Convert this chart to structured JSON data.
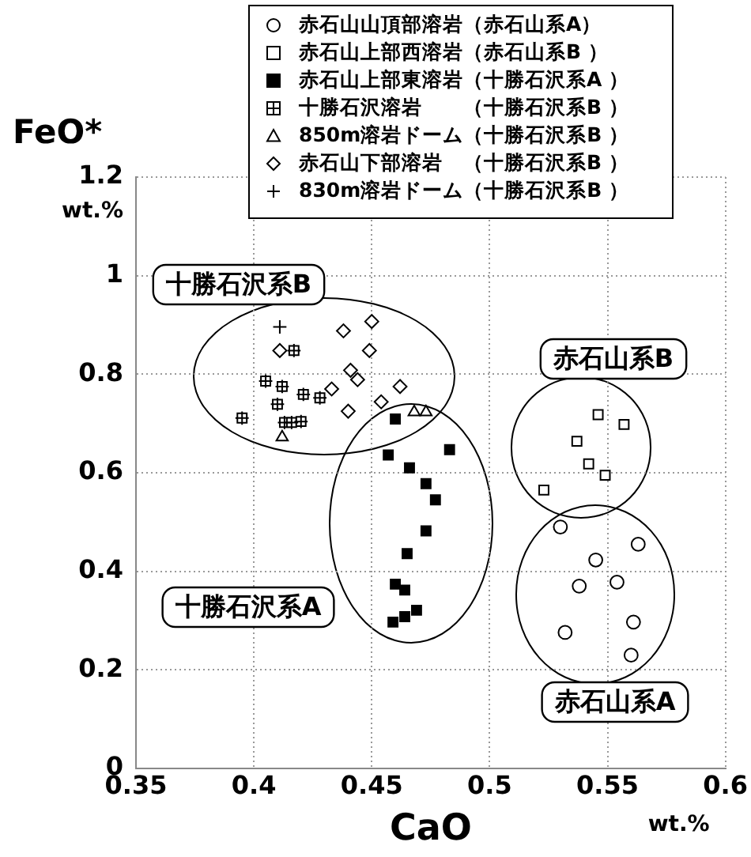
{
  "chart_data": {
    "type": "scatter",
    "xlabel": "CaO",
    "ylabel": "FeO*",
    "xlim": [
      0.35,
      0.6
    ],
    "xticks": [
      0.35,
      0.4,
      0.45,
      0.5,
      0.55,
      0.6
    ],
    "ylim": [
      0,
      1.2
    ],
    "yticks": [
      0,
      0.2,
      0.4,
      0.6,
      0.8,
      1,
      1.2
    ],
    "grid": true,
    "legend": "top",
    "annotations": [
      "wt.%",
      "wt.%",
      "十勝石沢系B",
      "赤石山系B",
      "十勝石沢系A",
      "赤石山系A"
    ],
    "series": [
      {
        "name": "赤石山山頂部溶岩（赤石山系A）",
        "color": "#000000",
        "marker": "circle",
        "x": [
          0.53,
          0.563,
          0.545,
          0.538,
          0.554,
          0.561,
          0.532,
          0.56
        ],
        "values": [
          0.49,
          0.455,
          0.423,
          0.37,
          0.378,
          0.297,
          0.276,
          0.23
        ]
      },
      {
        "name": "赤石山上部西溶岩（赤石山系B ）",
        "color": "#000000",
        "marker": "square",
        "x": [
          0.546,
          0.557,
          0.537,
          0.542,
          0.549,
          0.523
        ],
        "values": [
          0.718,
          0.698,
          0.664,
          0.618,
          0.595,
          0.565
        ]
      },
      {
        "name": "赤石山上部東溶岩（十勝石沢系A ）",
        "color": "#000000",
        "marker": "square",
        "x": [
          0.46,
          0.483,
          0.457,
          0.466,
          0.473,
          0.477,
          0.473,
          0.465,
          0.46,
          0.464,
          0.469,
          0.464,
          0.459
        ],
        "values": [
          0.709,
          0.647,
          0.636,
          0.61,
          0.578,
          0.545,
          0.482,
          0.436,
          0.374,
          0.362,
          0.321,
          0.308,
          0.297
        ]
      },
      {
        "name": "十勝石沢溶岩　　（十勝石沢系B ）",
        "color": "#000000",
        "marker": "square",
        "x": [
          0.417,
          0.405,
          0.412,
          0.421,
          0.428,
          0.41,
          0.395,
          0.413,
          0.416,
          0.42
        ],
        "values": [
          0.848,
          0.786,
          0.775,
          0.759,
          0.752,
          0.739,
          0.711,
          0.702,
          0.702,
          0.704
        ]
      },
      {
        "name": "850m溶岩ドーム（十勝石沢系B ）",
        "color": "#000000",
        "marker": "triangle",
        "x": [
          0.412,
          0.468,
          0.473
        ],
        "values": [
          0.672,
          0.723,
          0.723
        ]
      },
      {
        "name": "赤石山下部溶岩　（十勝石沢系B ）",
        "color": "#000000",
        "marker": "diamond",
        "x": [
          0.45,
          0.438,
          0.449,
          0.411,
          0.441,
          0.444,
          0.433,
          0.462,
          0.454,
          0.44
        ],
        "values": [
          0.907,
          0.888,
          0.848,
          0.848,
          0.808,
          0.789,
          0.77,
          0.775,
          0.744,
          0.725
        ]
      },
      {
        "name": "830m溶岩ドーム（十勝石沢系B ）",
        "color": "#000000",
        "marker": "cross",
        "x": [
          0.411
        ],
        "values": [
          0.896
        ]
      }
    ]
  }
}
